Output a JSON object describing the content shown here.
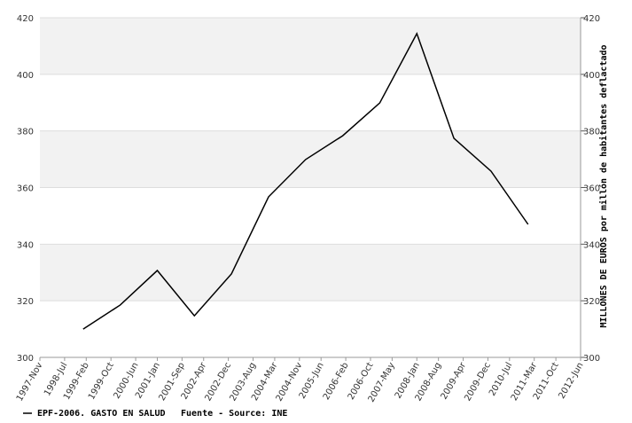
{
  "chart_data": {
    "type": "line",
    "y2_label": "MILLONES DE EUROS por millón de habitantes deflactado",
    "x": [
      "1999",
      "2000",
      "2001",
      "2002",
      "2003",
      "2004",
      "2005",
      "2006",
      "2007",
      "2008",
      "2009",
      "2010",
      "2011"
    ],
    "series": [
      {
        "name": "EPF-2006. GASTO EN SALUD",
        "color": "#000000",
        "values": [
          310,
          318.5,
          330.7,
          314.7,
          329.5,
          356.7,
          369.9,
          378.3,
          389.9,
          414.4,
          377.4,
          365.8,
          347
        ]
      }
    ],
    "source": "Fuente - Source: INE",
    "xticks": [
      "1997-Nov",
      "1998-Jul",
      "1999-Feb",
      "1999-Oct",
      "2000-Jun",
      "2001-Jan",
      "2001-Sep",
      "2002-Apr",
      "2002-Dec",
      "2003-Aug",
      "2004-Mar",
      "2004-Nov",
      "2005-Jun",
      "2006-Feb",
      "2006-Oct",
      "2007-May",
      "2008-Jan",
      "2008-Aug",
      "2009-Apr",
      "2009-Dec",
      "2010-Jul",
      "2011-Mar",
      "2011-Oct",
      "2012-Jun"
    ],
    "ylim": [
      300,
      420
    ],
    "yticks": [
      300,
      320,
      340,
      360,
      380,
      400,
      420
    ],
    "y2lim": [
      300,
      420
    ],
    "y2ticks": [
      300,
      320,
      340,
      360,
      380,
      400,
      420
    ],
    "grid": true
  }
}
